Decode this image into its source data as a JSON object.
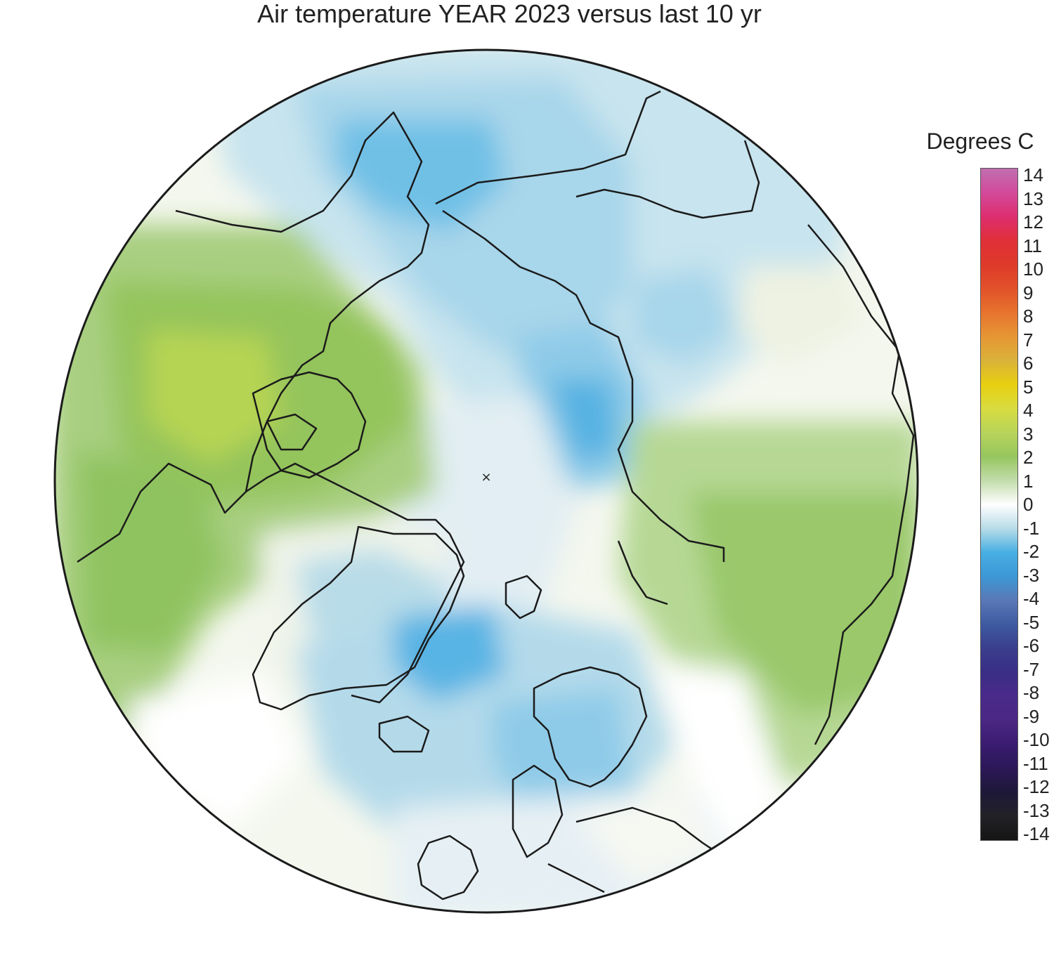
{
  "title": "Air temperature YEAR 2023 versus last 10 yr",
  "legend": {
    "title": "Degrees C",
    "ticks": [
      "14",
      "13",
      "12",
      "11",
      "10",
      "9",
      "8",
      "7",
      "6",
      "5",
      "4",
      "3",
      "2",
      "1",
      "0",
      "-1",
      "-2",
      "-3",
      "-4",
      "-5",
      "-6",
      "-7",
      "-8",
      "-9",
      "-10",
      "-11",
      "-12",
      "-13",
      "-14"
    ],
    "range": [
      -14,
      14
    ],
    "colors": {
      "14": "#c06fb0",
      "13": "#d24a9a",
      "12": "#dd2e6f",
      "11": "#e03038",
      "10": "#de3a2a",
      "9": "#e2512a",
      "8": "#e6732e",
      "7": "#e79634",
      "6": "#d9b23a",
      "5": "#e8cf10",
      "4": "#d8dc40",
      "3": "#b8d45a",
      "2": "#96c65e",
      "1": "#c2dcaa",
      "0": "#ffffff",
      "-1": "#b8dce8",
      "-2": "#48b0e2",
      "-3": "#3c98d6",
      "-4": "#5a78b6",
      "-5": "#3e5aa2",
      "-6": "#3a3e8c",
      "-7": "#3a2e86",
      "-8": "#4a2a8a",
      "-9": "#4a2884",
      "-10": "#3a1c70",
      "-11": "#2c1858",
      "-12": "#1e1838",
      "-13": "#222226",
      "-14": "#151515"
    }
  },
  "map": {
    "projection": "north polar stereographic",
    "pole_marker": "×"
  }
}
